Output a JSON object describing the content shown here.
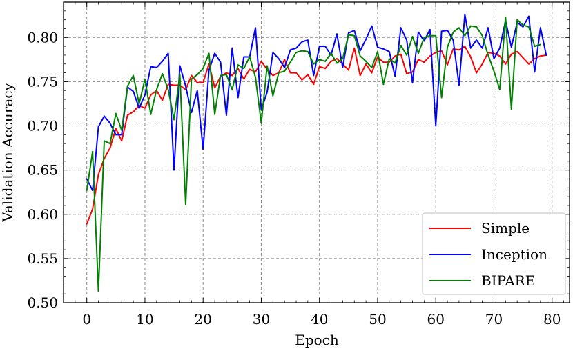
{
  "chart_data": {
    "type": "line",
    "title": "",
    "xlabel": "Epoch",
    "ylabel": "Validation Accuracy",
    "xlim": [
      -4,
      83
    ],
    "ylim": [
      0.5,
      0.84
    ],
    "xticks": [
      0,
      10,
      20,
      30,
      40,
      50,
      60,
      70,
      80
    ],
    "xtick_labels": [
      "0",
      "10",
      "20",
      "30",
      "40",
      "50",
      "60",
      "70",
      "80"
    ],
    "yticks": [
      0.5,
      0.55,
      0.6,
      0.65,
      0.7,
      0.75,
      0.8
    ],
    "ytick_labels": [
      "0.50",
      "0.55",
      "0.60",
      "0.65",
      "0.70",
      "0.75",
      "0.80"
    ],
    "grid": true,
    "legend_position": "bottom-right",
    "series": [
      {
        "name": "Simple",
        "color": "#ff0000",
        "values": [
          0.589,
          0.606,
          0.645,
          0.663,
          0.675,
          0.697,
          0.683,
          0.712,
          0.716,
          0.723,
          0.72,
          0.735,
          0.74,
          0.729,
          0.747,
          0.746,
          0.746,
          0.741,
          0.757,
          0.749,
          0.749,
          0.77,
          0.743,
          0.756,
          0.76,
          0.757,
          0.765,
          0.753,
          0.764,
          0.761,
          0.773,
          0.764,
          0.757,
          0.76,
          0.775,
          0.76,
          0.76,
          0.752,
          0.758,
          0.747,
          0.767,
          0.765,
          0.773,
          0.776,
          0.77,
          0.763,
          0.788,
          0.757,
          0.77,
          0.76,
          0.778,
          0.772,
          0.772,
          0.779,
          0.781,
          0.759,
          0.761,
          0.775,
          0.772,
          0.779,
          0.783,
          0.785,
          0.769,
          0.787,
          0.786,
          0.79,
          0.778,
          0.76,
          0.77,
          0.783,
          0.782,
          0.779,
          0.77,
          0.781,
          0.784,
          0.777,
          0.77,
          0.776,
          0.779,
          0.78
        ]
      },
      {
        "name": "Inception",
        "color": "#0000ff",
        "values": [
          0.64,
          0.627,
          0.699,
          0.711,
          0.703,
          0.69,
          0.69,
          0.744,
          0.739,
          0.72,
          0.735,
          0.767,
          0.766,
          0.773,
          0.782,
          0.65,
          0.768,
          0.745,
          0.715,
          0.74,
          0.673,
          0.763,
          0.782,
          0.772,
          0.712,
          0.788,
          0.732,
          0.778,
          0.778,
          0.811,
          0.718,
          0.738,
          0.783,
          0.776,
          0.766,
          0.786,
          0.788,
          0.795,
          0.797,
          0.757,
          0.79,
          0.79,
          0.78,
          0.804,
          0.766,
          0.805,
          0.808,
          0.785,
          0.798,
          0.813,
          0.789,
          0.787,
          0.784,
          0.756,
          0.811,
          0.797,
          0.749,
          0.806,
          0.796,
          0.809,
          0.7,
          0.807,
          0.808,
          0.797,
          0.746,
          0.826,
          0.788,
          0.797,
          0.788,
          0.811,
          0.776,
          0.788,
          0.819,
          0.789,
          0.817,
          0.812,
          0.824,
          0.761,
          0.811,
          0.78
        ]
      },
      {
        "name": "BIPARE",
        "color": "#008000",
        "values": [
          0.627,
          0.671,
          0.513,
          0.683,
          0.68,
          0.714,
          0.695,
          0.745,
          0.757,
          0.725,
          0.753,
          0.713,
          0.741,
          0.759,
          0.741,
          0.707,
          0.758,
          0.611,
          0.753,
          0.758,
          0.765,
          0.782,
          0.713,
          0.757,
          0.758,
          0.741,
          0.769,
          0.765,
          0.778,
          0.755,
          0.703,
          0.768,
          0.734,
          0.76,
          0.762,
          0.772,
          0.783,
          0.785,
          0.784,
          0.77,
          0.775,
          0.773,
          0.782,
          0.771,
          0.776,
          0.803,
          0.802,
          0.779,
          0.773,
          0.766,
          0.784,
          0.747,
          0.776,
          0.771,
          0.791,
          0.78,
          0.801,
          0.782,
          0.8,
          0.802,
          0.802,
          0.732,
          0.789,
          0.806,
          0.811,
          0.802,
          0.813,
          0.812,
          0.802,
          0.78,
          0.762,
          0.741,
          0.823,
          0.719,
          0.82,
          0.814,
          0.812,
          0.79,
          0.792
        ]
      }
    ]
  }
}
